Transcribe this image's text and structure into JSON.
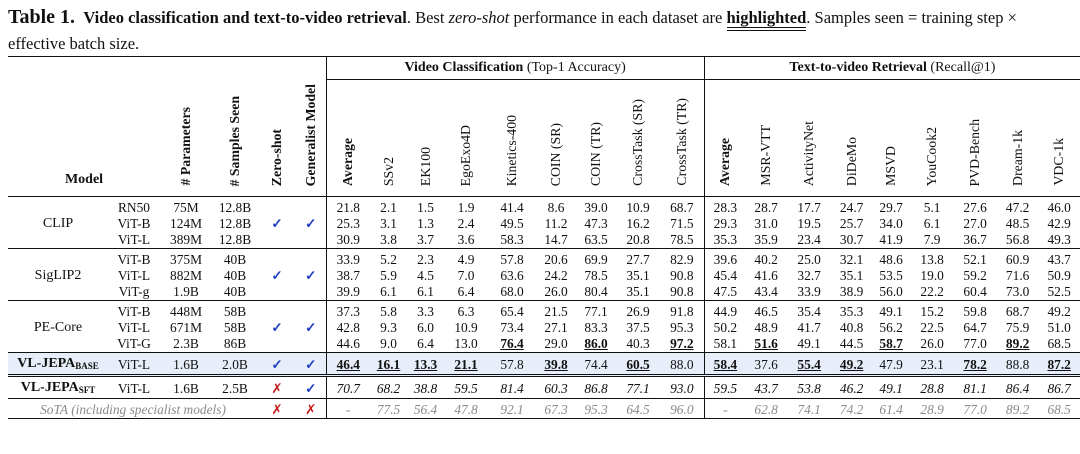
{
  "caption": {
    "table_number": "Table 1.",
    "title": "Video classification and text-to-video retrieval",
    "text_before": ". Best ",
    "zero_shot": "zero-shot",
    "text_middle": " performance in each dataset are ",
    "highlighted": "highlighted",
    "text_after": ". Samples seen = training step × effective batch size."
  },
  "header": {
    "group_vc": "Video Classification",
    "group_vc_note": "(Top-1 Accuracy)",
    "group_tvr": "Text-to-video Retrieval",
    "group_tvr_note": "(Recall@1)",
    "model": "Model",
    "params": "# Parameters",
    "samples": "# Samples Seen",
    "zeroshot": "Zero-shot",
    "generalist": "Generalist Model",
    "vc_cols": [
      "Average",
      "SSv2",
      "EK100",
      "EgoExo4D",
      "Kinetics-400",
      "COIN (SR)",
      "COIN (TR)",
      "CrossTask (SR)",
      "CrossTask (TR)"
    ],
    "tvr_cols": [
      "Average",
      "MSR-VTT",
      "ActivityNet",
      "DiDeMo",
      "MSVD",
      "YouCook2",
      "PVD-Bench",
      "Dream-1k",
      "VDC-1k"
    ]
  },
  "groups": [
    {
      "family": "CLIP",
      "rows": [
        {
          "arch": "RN50",
          "params": "75M",
          "samples": "12.8B",
          "vc": [
            "21.8",
            "2.1",
            "1.5",
            "1.9",
            "41.4",
            "8.6",
            "39.0",
            "10.9",
            "68.7"
          ],
          "tvr": [
            "28.3",
            "28.7",
            "17.7",
            "24.7",
            "29.7",
            "5.1",
            "27.6",
            "47.2",
            "46.0"
          ]
        },
        {
          "arch": "ViT-B",
          "params": "124M",
          "samples": "12.8B",
          "vc": [
            "25.3",
            "3.1",
            "1.3",
            "2.4",
            "49.5",
            "11.2",
            "47.3",
            "16.2",
            "71.5"
          ],
          "tvr": [
            "29.3",
            "31.0",
            "19.5",
            "25.7",
            "34.0",
            "6.1",
            "27.0",
            "48.5",
            "42.9"
          ]
        },
        {
          "arch": "ViT-L",
          "params": "389M",
          "samples": "12.8B",
          "vc": [
            "30.9",
            "3.8",
            "3.7",
            "3.6",
            "58.3",
            "14.7",
            "63.5",
            "20.8",
            "78.5"
          ],
          "tvr": [
            "35.3",
            "35.9",
            "23.4",
            "30.7",
            "41.9",
            "7.9",
            "36.7",
            "56.8",
            "49.3"
          ]
        }
      ],
      "zeroshot": "✓",
      "generalist": "✓"
    },
    {
      "family": "SigLIP2",
      "rows": [
        {
          "arch": "ViT-B",
          "params": "375M",
          "samples": "40B",
          "vc": [
            "33.9",
            "5.2",
            "2.3",
            "4.9",
            "57.8",
            "20.6",
            "69.9",
            "27.7",
            "82.9"
          ],
          "tvr": [
            "39.6",
            "40.2",
            "25.0",
            "32.1",
            "48.6",
            "13.8",
            "52.1",
            "60.9",
            "43.7"
          ]
        },
        {
          "arch": "ViT-L",
          "params": "882M",
          "samples": "40B",
          "vc": [
            "38.7",
            "5.9",
            "4.5",
            "7.0",
            "63.6",
            "24.2",
            "78.5",
            "35.1",
            "90.8"
          ],
          "tvr": [
            "45.4",
            "41.6",
            "32.7",
            "35.1",
            "53.5",
            "19.0",
            "59.2",
            "71.6",
            "50.9"
          ]
        },
        {
          "arch": "ViT-g",
          "params": "1.9B",
          "samples": "40B",
          "vc": [
            "39.9",
            "6.1",
            "6.1",
            "6.4",
            "68.0",
            "26.0",
            "80.4",
            "35.1",
            "90.8"
          ],
          "tvr": [
            "47.5",
            "43.4",
            "33.9",
            "38.9",
            "56.0",
            "22.2",
            "60.4",
            "73.0",
            "52.5"
          ]
        }
      ],
      "zeroshot": "✓",
      "generalist": "✓"
    },
    {
      "family": "PE-Core",
      "rows": [
        {
          "arch": "ViT-B",
          "params": "448M",
          "samples": "58B",
          "vc": [
            "37.3",
            "5.8",
            "3.3",
            "6.3",
            "65.4",
            "21.5",
            "77.1",
            "26.9",
            "91.8"
          ],
          "tvr": [
            "44.9",
            "46.5",
            "35.4",
            "35.3",
            "49.1",
            "15.2",
            "59.8",
            "68.7",
            "49.2"
          ]
        },
        {
          "arch": "ViT-L",
          "params": "671M",
          "samples": "58B",
          "vc": [
            "42.8",
            "9.3",
            "6.0",
            "10.9",
            "73.4",
            "27.1",
            "83.3",
            "37.5",
            "95.3"
          ],
          "tvr": [
            "50.2",
            "48.9",
            "41.7",
            "40.8",
            "56.2",
            "22.5",
            "64.7",
            "75.9",
            "51.0"
          ]
        },
        {
          "arch": "ViT-G",
          "params": "2.3B",
          "samples": "86B",
          "vc": [
            "44.6",
            "9.0",
            "6.4",
            "13.0",
            "76.4",
            "29.0",
            "86.0",
            "40.3",
            "97.2"
          ],
          "tvr": [
            "58.1",
            "51.6",
            "49.1",
            "44.5",
            "58.7",
            "26.0",
            "77.0",
            "89.2",
            "68.5"
          ]
        }
      ],
      "zeroshot": "✓",
      "generalist": "✓"
    }
  ],
  "vljepa_base": {
    "name": "VL-JEPA",
    "sub": "BASE",
    "arch": "ViT-L",
    "params": "1.6B",
    "samples": "2.0B",
    "zeroshot": "✓",
    "generalist": "✓",
    "vc": [
      "46.4",
      "16.1",
      "13.3",
      "21.1",
      "57.8",
      "39.8",
      "74.4",
      "60.5",
      "88.0"
    ],
    "tvr": [
      "58.4",
      "37.6",
      "55.4",
      "49.2",
      "47.9",
      "23.1",
      "78.2",
      "88.8",
      "87.2"
    ]
  },
  "vljepa_sft": {
    "name": "VL-JEPA",
    "sub": "SFT",
    "arch": "ViT-L",
    "params": "1.6B",
    "samples": "2.5B",
    "zeroshot": "✗",
    "generalist": "✓",
    "vc": [
      "70.7",
      "68.2",
      "38.8",
      "59.5",
      "81.4",
      "60.3",
      "86.8",
      "77.1",
      "93.0"
    ],
    "tvr": [
      "59.5",
      "43.7",
      "53.8",
      "46.2",
      "49.1",
      "28.8",
      "81.1",
      "86.4",
      "86.7"
    ]
  },
  "sota": {
    "label": "SoTA (including specialist models)",
    "zeroshot": "✗",
    "generalist": "✗",
    "vc": [
      "-",
      "77.5",
      "56.4",
      "47.8",
      "92.1",
      "67.3",
      "95.3",
      "64.5",
      "96.0"
    ],
    "tvr": [
      "-",
      "62.8",
      "74.1",
      "74.2",
      "61.4",
      "28.9",
      "77.0",
      "89.2",
      "68.5"
    ]
  },
  "colors": {
    "check": "#1f3fbf",
    "cross": "#c41a1a",
    "highlight_row": "#e7eefa",
    "sota_text": "#8a8a8a"
  }
}
